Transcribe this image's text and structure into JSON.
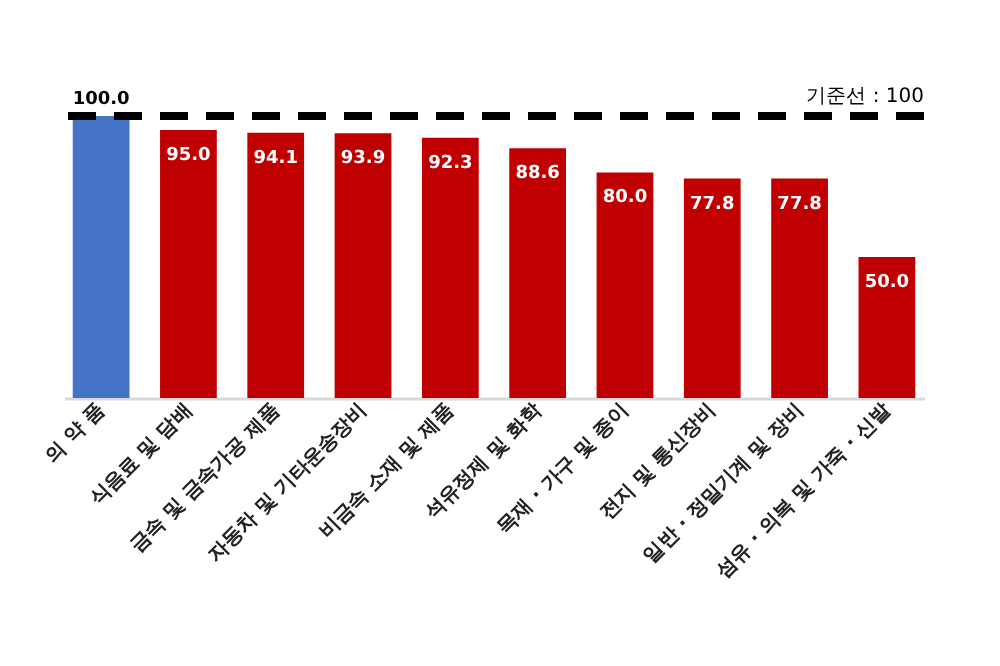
{
  "chart_data": {
    "type": "bar",
    "categories": [
      "의 약 품",
      "식음료 및 담배",
      "금속 및 금속가공 제품",
      "자동차 및 기타운송장비",
      "비금속 소재 및 제품",
      "석유정제 및 화학",
      "목재 · 가구 및 종이",
      "전지 및 통신장비",
      "일반 · 정밀기계 및 장비",
      "섬유 · 의복 및 가죽 · 신발"
    ],
    "values": [
      100.0,
      95.0,
      94.1,
      93.9,
      92.3,
      88.6,
      80.0,
      77.8,
      77.8,
      50.0
    ],
    "colors": [
      "#4472c4",
      "#c00000",
      "#c00000",
      "#c00000",
      "#c00000",
      "#c00000",
      "#c00000",
      "#c00000",
      "#c00000",
      "#c00000"
    ],
    "value_labels": [
      "100.0",
      "95.0",
      "94.1",
      "93.9",
      "92.3",
      "88.6",
      "80.0",
      "77.8",
      "77.8",
      "50.0"
    ],
    "tick_labels": "x",
    "ref_lines": [
      {
        "axis": "y",
        "value": 100,
        "label": "기준선 : 100",
        "color": "#000000",
        "line_style": "dashed"
      }
    ]
  }
}
